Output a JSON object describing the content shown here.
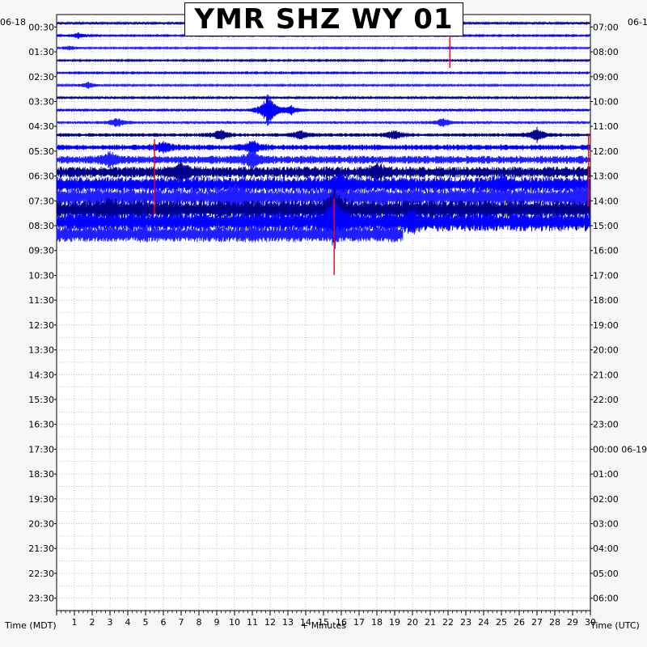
{
  "chart_data": {
    "type": "helicorder",
    "title": "YMR SHZ WY 01",
    "left_date": "06-18",
    "right_date": "06-1",
    "left_axis_label": "Time (MDT)",
    "right_axis_label": "Time (UTC)",
    "x_axis_label": "+ Minutes",
    "x_ticks": [
      "1",
      "2",
      "3",
      "4",
      "5",
      "6",
      "7",
      "8",
      "9",
      "10",
      "11",
      "12",
      "13",
      "14",
      "15",
      "16",
      "17",
      "18",
      "19",
      "20",
      "21",
      "22",
      "23",
      "24",
      "25",
      "26",
      "27",
      "28",
      "29",
      "30"
    ],
    "xlim": [
      0,
      30
    ],
    "left_time_labels": [
      "00:30",
      "01:30",
      "02:30",
      "03:30",
      "04:30",
      "05:30",
      "06:30",
      "07:30",
      "08:30",
      "09:30",
      "10:30",
      "11:30",
      "12:30",
      "13:30",
      "14:30",
      "15:30",
      "16:30",
      "17:30",
      "18:30",
      "19:30",
      "20:30",
      "21:30",
      "22:30",
      "23:30"
    ],
    "right_time_labels": [
      "07:00",
      "08:00",
      "09:00",
      "10:00",
      "11:00",
      "12:00",
      "13:00",
      "14:00",
      "15:00",
      "16:00",
      "17:00",
      "18:00",
      "19:00",
      "20:00",
      "21:00",
      "22:00",
      "23:00",
      "00:00 06-19",
      "01:00",
      "02:00",
      "03:00",
      "04:00",
      "05:00",
      "06:00"
    ],
    "trace_count": 18,
    "trace_colors": [
      "#00008b",
      "#0000ff",
      "#1e1eff"
    ],
    "clip_color": "#ff0000",
    "grid": true
  }
}
